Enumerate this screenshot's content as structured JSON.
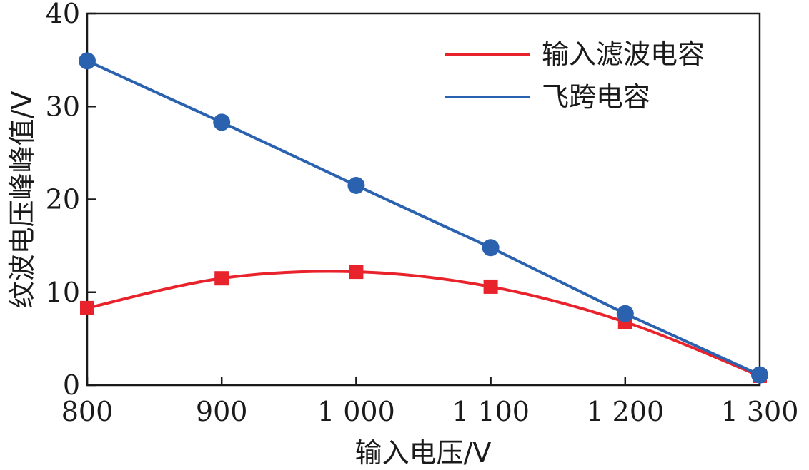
{
  "chart_data": {
    "type": "line",
    "x": [
      800,
      900,
      1000,
      1100,
      1200,
      1300
    ],
    "x_tick_labels": [
      "800",
      "900",
      "1 000",
      "1 100",
      "1 200",
      "1 300"
    ],
    "y_ticks": [
      0,
      10,
      20,
      30,
      40
    ],
    "y_tick_labels": [
      "0",
      "10",
      "20",
      "30",
      "40"
    ],
    "xlim": [
      800,
      1300
    ],
    "ylim": [
      0,
      40
    ],
    "xlabel": "输入电压/V",
    "ylabel": "纹波电压峰峰值/V",
    "grid": false,
    "legend_position": "top-right",
    "series": [
      {
        "name": "输入滤波电容",
        "color": "#e8232b",
        "marker": "square",
        "curve": "smooth",
        "values": [
          8.3,
          11.5,
          12.2,
          10.6,
          6.8,
          1.0
        ]
      },
      {
        "name": "飞跨电容",
        "color": "#2a62b0",
        "marker": "circle",
        "curve": "straight",
        "values": [
          34.9,
          28.3,
          21.5,
          14.8,
          7.7,
          1.1
        ]
      }
    ]
  }
}
